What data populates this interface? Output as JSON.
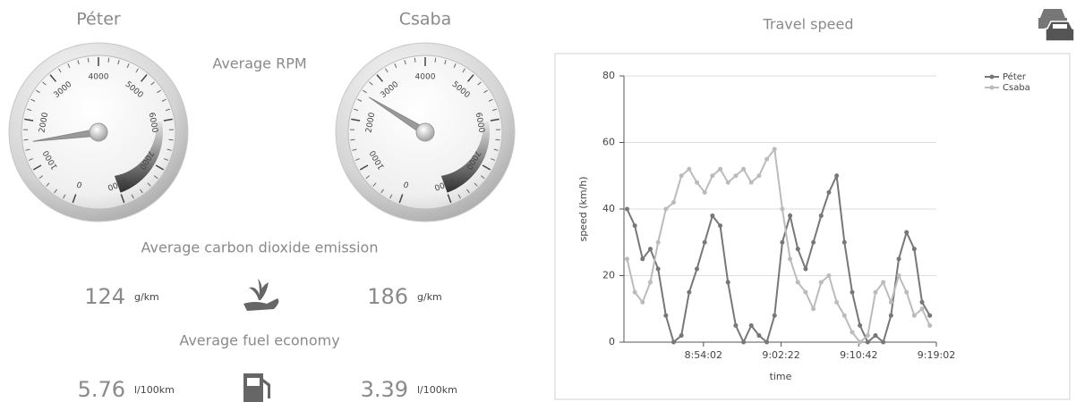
{
  "drivers": [
    "Péter",
    "Csaba"
  ],
  "rpm": {
    "title": "Average RPM",
    "gauge_ticks": [
      0,
      1000,
      2000,
      3000,
      4000,
      5000,
      6000,
      7000,
      8000
    ],
    "values": [
      1550,
      2550
    ]
  },
  "emission": {
    "title": "Average carbon dioxide emission",
    "values": [
      124,
      186
    ],
    "unit": "g/km"
  },
  "fuel": {
    "title": "Average fuel economy",
    "values": [
      5.76,
      3.39
    ],
    "unit": "l/100km"
  },
  "chart_data": {
    "type": "line",
    "title": "Travel speed",
    "x_label": "time",
    "y_label": "speed (km/h)",
    "x": [
      31550,
      31600,
      31650,
      31700,
      31750,
      31800,
      31850,
      31900,
      31950,
      32000,
      32050,
      32100,
      32150,
      32200,
      32250,
      32300,
      32350,
      32400,
      32450,
      32500,
      32550,
      32600,
      32650,
      32700,
      32750,
      32800,
      32850,
      32900,
      32950,
      33000,
      33050,
      33100,
      33150,
      33200,
      33250,
      33300,
      33350,
      33400,
      33450,
      33500
    ],
    "series": [
      {
        "name": "Péter",
        "color": "#777777",
        "values": [
          40,
          35,
          25,
          28,
          22,
          8,
          0,
          2,
          15,
          22,
          30,
          38,
          35,
          18,
          5,
          0,
          5,
          2,
          0,
          8,
          30,
          38,
          28,
          22,
          30,
          38,
          45,
          50,
          30,
          15,
          5,
          0,
          2,
          0,
          8,
          25,
          33,
          28,
          12,
          8
        ]
      },
      {
        "name": "Csaba",
        "color": "#bbbbbb",
        "values": [
          25,
          15,
          12,
          18,
          30,
          40,
          42,
          50,
          52,
          48,
          45,
          50,
          52,
          48,
          50,
          52,
          48,
          50,
          55,
          58,
          40,
          25,
          18,
          15,
          10,
          18,
          20,
          12,
          8,
          3,
          0,
          2,
          15,
          18,
          12,
          20,
          15,
          8,
          10,
          5
        ]
      }
    ],
    "xlim": [
      31530,
      33542
    ],
    "xticks": [
      {
        "value": 32042,
        "label": "8:54:02"
      },
      {
        "value": 32542,
        "label": "9:02:22"
      },
      {
        "value": 33042,
        "label": "9:10:42"
      },
      {
        "value": 33542,
        "label": "9:19:02"
      }
    ],
    "ylim": [
      0,
      80
    ],
    "yticks": [
      0,
      20,
      40,
      60,
      80
    ],
    "grid": true,
    "legend": "top-right"
  }
}
